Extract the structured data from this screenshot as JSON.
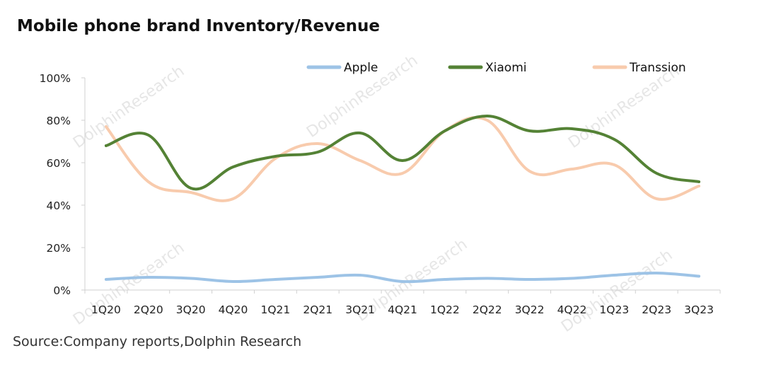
{
  "title": "Mobile phone brand Inventory/Revenue",
  "source": "Source:Company reports,Dolphin Research",
  "watermark": "DolphinResearch",
  "chart_data": {
    "type": "line",
    "title": "Mobile phone brand Inventory/Revenue",
    "xlabel": "",
    "ylabel": "",
    "categories": [
      "1Q20",
      "2Q20",
      "3Q20",
      "4Q20",
      "1Q21",
      "2Q21",
      "3Q21",
      "4Q21",
      "1Q22",
      "2Q22",
      "3Q22",
      "4Q22",
      "1Q23",
      "2Q23",
      "3Q23"
    ],
    "yticks": [
      "0%",
      "20%",
      "40%",
      "60%",
      "80%",
      "100%"
    ],
    "ylim": [
      0,
      100
    ],
    "grid": false,
    "legend_position": "top",
    "series": [
      {
        "name": "Apple",
        "color": "#9dc3e6",
        "values": [
          5,
          6,
          5.5,
          4,
          5,
          6,
          7,
          4,
          5,
          5.5,
          5,
          5.5,
          7,
          8,
          6.5
        ]
      },
      {
        "name": "Xiaomi",
        "color": "#548235",
        "values": [
          68,
          73,
          48,
          58,
          63,
          65,
          74,
          61,
          75,
          82,
          75,
          76,
          71,
          55,
          51
        ]
      },
      {
        "name": "Transsion",
        "color": "#f8cbad",
        "values": [
          77,
          51,
          46,
          43,
          62,
          69,
          61,
          55,
          75,
          80,
          56,
          57,
          59,
          43,
          49
        ]
      }
    ]
  }
}
